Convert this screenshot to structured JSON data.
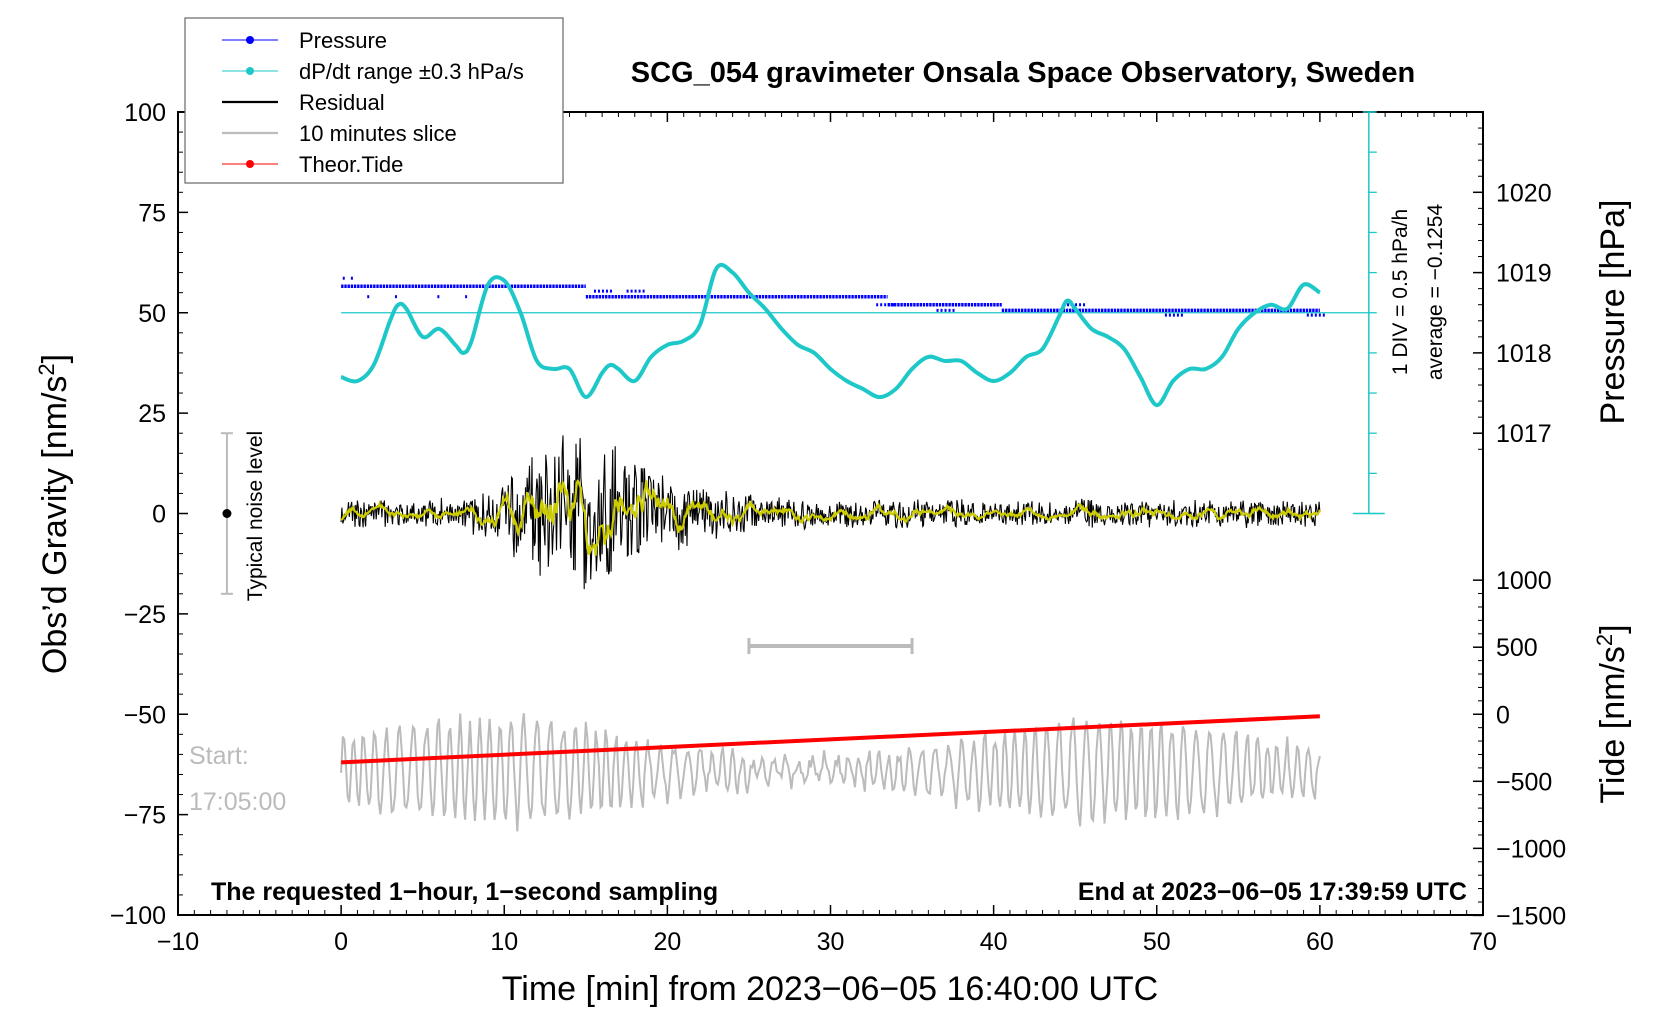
{
  "chart_data": {
    "type": "line",
    "title": "SCG_054 gravimeter Onsala Space Observatory, Sweden",
    "xlabel": "Time [min] from 2023−06−05 16:40:00 UTC",
    "ylabel_left": "Obs’d Gravity [nm/s",
    "ylabel_left_sup": "2",
    "ylabel_left_end": "]",
    "ylabel_right_pressure": "Pressure [hPa]",
    "ylabel_right_tide": "Tide [nm/s",
    "ylabel_right_tide_sup": "2",
    "ylabel_right_tide_end": "]",
    "xlim": [
      -10,
      70
    ],
    "ylim": [
      -100,
      100
    ],
    "x_ticks": [
      -10,
      0,
      10,
      20,
      30,
      40,
      50,
      60,
      70
    ],
    "x_tick_labels": [
      "−10",
      "0",
      "10",
      "20",
      "30",
      "40",
      "50",
      "60",
      "70"
    ],
    "y_ticks": [
      -100,
      -75,
      -50,
      -25,
      0,
      25,
      50,
      75,
      100
    ],
    "y_tick_labels": [
      "−100",
      "−75",
      "−50",
      "−25",
      "0",
      "25",
      "50",
      "75",
      "100"
    ],
    "pressure_axis": {
      "ticks": [
        1017,
        1018,
        1019,
        1020
      ],
      "tick_labels": [
        "1017",
        "1018",
        "1019",
        "1020"
      ],
      "y_at_1017": 20,
      "y_per_hPa": 20
    },
    "tide_axis": {
      "ticks": [
        -1500,
        -1000,
        -500,
        0,
        500,
        1000
      ],
      "tick_labels": [
        "−1500",
        "−1000",
        "−500",
        "0",
        "500",
        "1000"
      ],
      "y_at_0": -50,
      "y_per_1000": 33.4
    },
    "legend": [
      {
        "label": "Pressure",
        "color": "#0000ff",
        "style": "line-dot"
      },
      {
        "label": "dP/dt range ±0.3 hPa/s",
        "color": "#1ec8c8",
        "style": "line-dot"
      },
      {
        "label": "Residual",
        "color": "#000000",
        "style": "line"
      },
      {
        "label": "10 minutes slice",
        "color": "#bbbbbb",
        "style": "line"
      },
      {
        "label": "Theor.Tide",
        "color": "#ff0000",
        "style": "line-dot"
      }
    ],
    "series": [
      {
        "name": "Pressure",
        "color": "#0000ff",
        "levels": [
          {
            "x0": 0,
            "x1": 15,
            "value": 1018.83
          },
          {
            "x0": 15,
            "x1": 33.5,
            "value": 1018.7
          },
          {
            "x0": 33.5,
            "x1": 40.5,
            "value": 1018.6
          },
          {
            "x0": 40.5,
            "x1": 60,
            "value": 1018.53
          }
        ],
        "outliers": [
          {
            "x": 0.1,
            "value": 1018.93
          },
          {
            "x": 0.6,
            "value": 1018.93
          },
          {
            "x": 1.6,
            "value": 1018.7
          },
          {
            "x": 3.3,
            "value": 1018.7
          },
          {
            "x": 5.9,
            "value": 1018.7
          },
          {
            "x": 7.6,
            "value": 1018.7
          },
          {
            "x": 15.5,
            "value": 1018.77
          },
          {
            "x": 17.5,
            "value": 1018.77
          },
          {
            "x": 32.8,
            "value": 1018.6
          },
          {
            "x": 36.5,
            "value": 1018.53
          },
          {
            "x": 44.5,
            "value": 1018.6
          },
          {
            "x": 50.5,
            "value": 1018.47
          },
          {
            "x": 59.2,
            "value": 1018.47
          }
        ]
      },
      {
        "name": "dP/dt",
        "color": "#1ec8c8",
        "reference_line": 50,
        "x": [
          0,
          1,
          2,
          3,
          3.5,
          4,
          5,
          6,
          7,
          7.5,
          8,
          9,
          10,
          11,
          12,
          13,
          14,
          15,
          16,
          16.5,
          17,
          18,
          19,
          20,
          21,
          22,
          23,
          24,
          25,
          26,
          27,
          28,
          29,
          30,
          31,
          32,
          33,
          34,
          35,
          36,
          37,
          38,
          39,
          40,
          41,
          42,
          43,
          44,
          44.5,
          45,
          46,
          47,
          48,
          49,
          50,
          51,
          52,
          53,
          54,
          55,
          56,
          57,
          58,
          59,
          60
        ],
        "values": [
          34,
          33,
          37,
          48,
          52,
          51,
          44,
          46,
          42,
          40,
          43,
          57,
          58,
          50,
          38,
          36,
          36,
          29,
          35,
          37,
          36,
          33,
          39,
          42,
          43,
          47,
          61,
          60,
          55,
          51,
          46,
          42,
          40,
          36,
          33,
          31,
          29,
          31,
          36,
          39,
          38,
          38,
          35,
          33,
          35,
          39,
          41,
          49,
          53,
          51,
          46,
          44,
          41,
          34,
          27,
          33,
          36,
          36,
          39,
          46,
          50,
          52,
          51,
          57,
          55
        ]
      },
      {
        "name": "Residual",
        "color": "#000000",
        "smoothed_color": "#cccc00",
        "description": "noise around 0, envelope approx ±8 nm/s2 rising to ±25 nm/s2 near x=14"
      },
      {
        "name": "10 minutes slice",
        "color": "#bbbbbb",
        "center": -64,
        "description": "oscillation between approx −74 and −49 nm/s2"
      },
      {
        "name": "Theor.Tide",
        "color": "#ff0000",
        "x": [
          0,
          60
        ],
        "values": [
          -62,
          -50.5
        ]
      }
    ],
    "slice_marker": {
      "x0": 25,
      "x1": 35,
      "y": -33
    },
    "noise_bar": {
      "x": -7,
      "y_low": -20,
      "y_high": 20,
      "y_dot": 0,
      "label": "Typical noise level"
    },
    "dpdt_scale_bar": {
      "x": 63,
      "y0": 0,
      "y1": 100
    },
    "dpdt_scale_text": "1 DIV = 0.5 hPa/h",
    "average_text": "average = −0.1254",
    "start_label": "Start:",
    "start_time": "17:05:00",
    "footer_left": "The requested 1−hour, 1−second sampling",
    "footer_right": "End at 2023−06−05 17:39:59 UTC"
  }
}
